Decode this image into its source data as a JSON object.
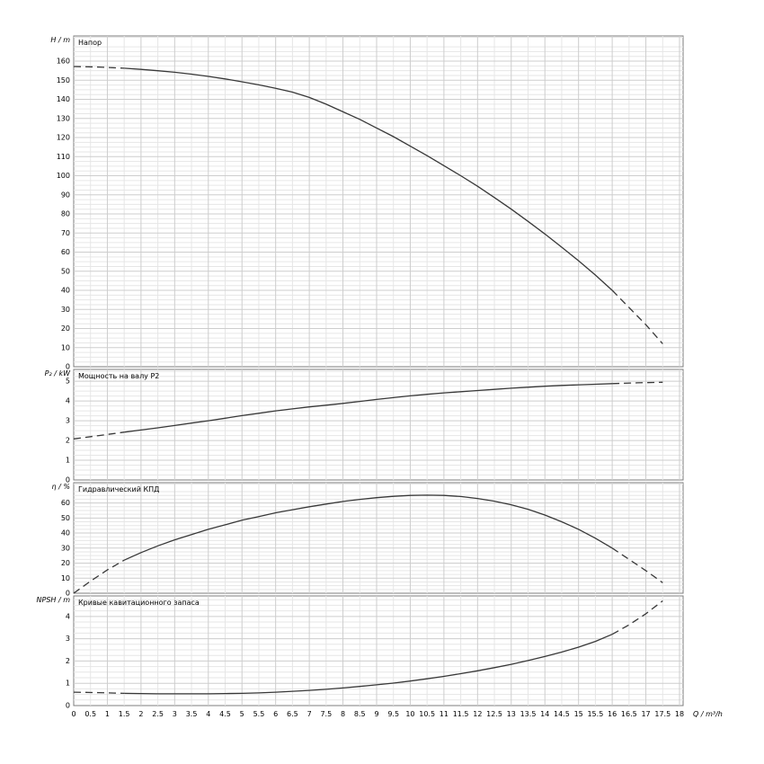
{
  "x_axis": {
    "label": "Q / m³/h",
    "min": 0,
    "max": 18,
    "tick_step": 0.5
  },
  "style": {
    "background": "#ffffff",
    "curve_color": "#383838",
    "grid_minor": "#e6e6e6",
    "grid_major": "#cdcdcd",
    "frame": "#7d7d7d",
    "text": "#000000"
  },
  "chart_data": [
    {
      "type": "line",
      "title": "Напор",
      "ylabel": "H / m",
      "xlabel": "Q / m³/h",
      "ylim": [
        0,
        173.2
      ],
      "ytick_step": 10,
      "ytick_max": 160,
      "yminor_step": 2.5,
      "series": [
        {
          "name": "head-below-min-flow",
          "style": "dashed",
          "points": [
            [
              0,
              157.2
            ],
            [
              0.75,
              156.9
            ],
            [
              1.5,
              156.3
            ]
          ]
        },
        {
          "name": "head-operating",
          "style": "solid",
          "points": [
            [
              1.5,
              156.3
            ],
            [
              2,
              155.7
            ],
            [
              2.5,
              155
            ],
            [
              3,
              154.2
            ],
            [
              3.5,
              153.2
            ],
            [
              4,
              152
            ],
            [
              4.5,
              150.7
            ],
            [
              5,
              149.2
            ],
            [
              5.5,
              147.6
            ],
            [
              6,
              145.8
            ],
            [
              6.5,
              143.8
            ],
            [
              7,
              141
            ],
            [
              7.5,
              137.5
            ],
            [
              8,
              133.5
            ],
            [
              8.5,
              129.5
            ],
            [
              9,
              125
            ],
            [
              9.5,
              120.5
            ],
            [
              10,
              115.5
            ],
            [
              10.5,
              110.5
            ],
            [
              11,
              105.3
            ],
            [
              11.5,
              100
            ],
            [
              12,
              94.5
            ],
            [
              12.5,
              88.6
            ],
            [
              13,
              82.5
            ],
            [
              13.5,
              76.1
            ],
            [
              14,
              69.5
            ],
            [
              14.5,
              62.6
            ],
            [
              15,
              55.5
            ],
            [
              15.5,
              48
            ],
            [
              16,
              40
            ]
          ]
        },
        {
          "name": "head-above-max-flow",
          "style": "dashed",
          "points": [
            [
              16,
              40
            ],
            [
              16.5,
              31
            ],
            [
              17,
              22
            ],
            [
              17.5,
              12
            ]
          ]
        }
      ]
    },
    {
      "type": "line",
      "title": "Мощность на валу P2",
      "ylabel": "P₂ / kW",
      "xlabel": "Q / m³/h",
      "ylim": [
        0,
        5.6
      ],
      "ytick_step": 1,
      "ytick_max": 5,
      "yminor_step": 0.25,
      "series": [
        {
          "name": "power-below-min-flow",
          "style": "dashed",
          "points": [
            [
              0,
              2.08
            ],
            [
              0.75,
              2.25
            ],
            [
              1.5,
              2.42
            ]
          ]
        },
        {
          "name": "power-operating",
          "style": "solid",
          "points": [
            [
              1.5,
              2.42
            ],
            [
              2,
              2.53
            ],
            [
              2.5,
              2.64
            ],
            [
              3,
              2.76
            ],
            [
              3.5,
              2.88
            ],
            [
              4,
              3.0
            ],
            [
              4.5,
              3.13
            ],
            [
              5,
              3.26
            ],
            [
              5.5,
              3.38
            ],
            [
              6,
              3.5
            ],
            [
              6.5,
              3.6
            ],
            [
              7,
              3.7
            ],
            [
              7.5,
              3.79
            ],
            [
              8,
              3.88
            ],
            [
              8.5,
              3.98
            ],
            [
              9,
              4.08
            ],
            [
              9.5,
              4.17
            ],
            [
              10,
              4.26
            ],
            [
              10.5,
              4.34
            ],
            [
              11,
              4.41
            ],
            [
              11.5,
              4.47
            ],
            [
              12,
              4.53
            ],
            [
              12.5,
              4.59
            ],
            [
              13,
              4.65
            ],
            [
              13.5,
              4.7
            ],
            [
              14,
              4.75
            ],
            [
              14.5,
              4.79
            ],
            [
              15,
              4.82
            ],
            [
              15.5,
              4.85
            ],
            [
              16,
              4.88
            ]
          ]
        },
        {
          "name": "power-above-max-flow",
          "style": "dashed",
          "points": [
            [
              16,
              4.88
            ],
            [
              16.75,
              4.92
            ],
            [
              17.5,
              4.95
            ]
          ]
        }
      ]
    },
    {
      "type": "line",
      "title": "Гидравлический КПД",
      "ylabel": "η / %",
      "xlabel": "Q / m³/h",
      "ylim": [
        0,
        73.5
      ],
      "ytick_step": 10,
      "ytick_max": 60,
      "yminor_step": 2.5,
      "series": [
        {
          "name": "efficiency-below-min-flow",
          "style": "dashed",
          "points": [
            [
              0,
              0
            ],
            [
              0.5,
              8
            ],
            [
              1,
              15.5
            ],
            [
              1.5,
              22
            ]
          ]
        },
        {
          "name": "efficiency-operating",
          "style": "solid",
          "points": [
            [
              1.5,
              22
            ],
            [
              2,
              27
            ],
            [
              2.5,
              31.5
            ],
            [
              3,
              35.5
            ],
            [
              3.5,
              39
            ],
            [
              4,
              42.5
            ],
            [
              4.5,
              45.5
            ],
            [
              5,
              48.5
            ],
            [
              5.5,
              51
            ],
            [
              6,
              53.5
            ],
            [
              6.5,
              55.5
            ],
            [
              7,
              57.5
            ],
            [
              7.5,
              59.3
            ],
            [
              8,
              61
            ],
            [
              8.5,
              62.4
            ],
            [
              9,
              63.5
            ],
            [
              9.5,
              64.4
            ],
            [
              10,
              65
            ],
            [
              10.5,
              65.2
            ],
            [
              11,
              65
            ],
            [
              11.5,
              64.3
            ],
            [
              12,
              63
            ],
            [
              12.5,
              61.2
            ],
            [
              13,
              58.8
            ],
            [
              13.5,
              55.8
            ],
            [
              14,
              52
            ],
            [
              14.5,
              47.5
            ],
            [
              15,
              42.5
            ],
            [
              15.5,
              36.6
            ],
            [
              16,
              30
            ]
          ]
        },
        {
          "name": "efficiency-above-max-flow",
          "style": "dashed",
          "points": [
            [
              16,
              30
            ],
            [
              16.5,
              22.5
            ],
            [
              17,
              15
            ],
            [
              17.5,
              7
            ]
          ]
        }
      ]
    },
    {
      "type": "line",
      "title": "Кривые кавитационного запаса",
      "ylabel": "NPSH / m",
      "xlabel": "Q / m³/h",
      "ylim": [
        0,
        4.92
      ],
      "ytick_step": 1,
      "ytick_max": 4,
      "yminor_step": 0.25,
      "series": [
        {
          "name": "npsh-below-min-flow",
          "style": "dashed",
          "points": [
            [
              0,
              0.6
            ],
            [
              0.75,
              0.58
            ],
            [
              1.5,
              0.55
            ]
          ]
        },
        {
          "name": "npsh-operating",
          "style": "solid",
          "points": [
            [
              1.5,
              0.55
            ],
            [
              2,
              0.54
            ],
            [
              2.5,
              0.53
            ],
            [
              3,
              0.53
            ],
            [
              3.5,
              0.53
            ],
            [
              4,
              0.53
            ],
            [
              4.5,
              0.54
            ],
            [
              5,
              0.55
            ],
            [
              5.5,
              0.57
            ],
            [
              6,
              0.6
            ],
            [
              6.5,
              0.64
            ],
            [
              7,
              0.68
            ],
            [
              7.5,
              0.73
            ],
            [
              8,
              0.79
            ],
            [
              8.5,
              0.86
            ],
            [
              9,
              0.93
            ],
            [
              9.5,
              1.01
            ],
            [
              10,
              1.1
            ],
            [
              10.5,
              1.2
            ],
            [
              11,
              1.31
            ],
            [
              11.5,
              1.43
            ],
            [
              12,
              1.56
            ],
            [
              12.5,
              1.7
            ],
            [
              13,
              1.85
            ],
            [
              13.5,
              2.02
            ],
            [
              14,
              2.2
            ],
            [
              14.5,
              2.4
            ],
            [
              15,
              2.62
            ],
            [
              15.5,
              2.88
            ],
            [
              16,
              3.2
            ]
          ]
        },
        {
          "name": "npsh-above-max-flow",
          "style": "dashed",
          "points": [
            [
              16,
              3.2
            ],
            [
              16.5,
              3.62
            ],
            [
              17,
              4.12
            ],
            [
              17.5,
              4.7
            ]
          ]
        }
      ]
    }
  ]
}
